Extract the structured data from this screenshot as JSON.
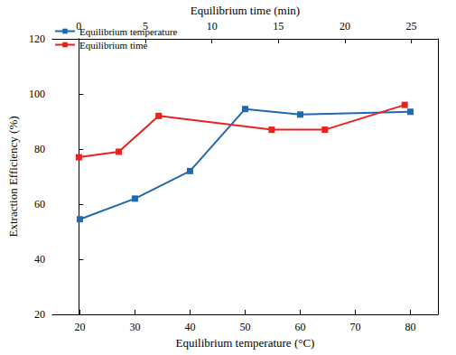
{
  "chart_data": {
    "type": "line",
    "xlabel": "Equilibrium temperature (°C)",
    "x2label": "Equilibrium time (min)",
    "ylabel": "Extraction Efficiency (%)",
    "xlim": [
      15,
      85
    ],
    "xticks": [
      20,
      30,
      40,
      50,
      60,
      70,
      80
    ],
    "x2lim": [
      -2,
      27
    ],
    "x2ticks": [
      0,
      5,
      10,
      15,
      20,
      25
    ],
    "ylim": [
      20,
      120
    ],
    "yticks": [
      20,
      40,
      60,
      80,
      100,
      120
    ],
    "grid": false,
    "legend": "upper left",
    "series": [
      {
        "name": "Equilibrium temperature",
        "color": "#2068b0",
        "marker": "square",
        "line_style": "solid",
        "x": [
          20,
          30,
          40,
          50,
          60,
          80
        ],
        "values": [
          54.5,
          62,
          72,
          94.5,
          92.5,
          93.5
        ]
      },
      {
        "name": "Equilibrium time",
        "color": "#e8221c",
        "marker": "square",
        "line_style": "solid",
        "axis": "x2",
        "x": [
          0,
          3,
          6,
          14.5,
          18.5,
          24.5
        ],
        "values": [
          77,
          79,
          92,
          87,
          87,
          96
        ]
      }
    ]
  }
}
